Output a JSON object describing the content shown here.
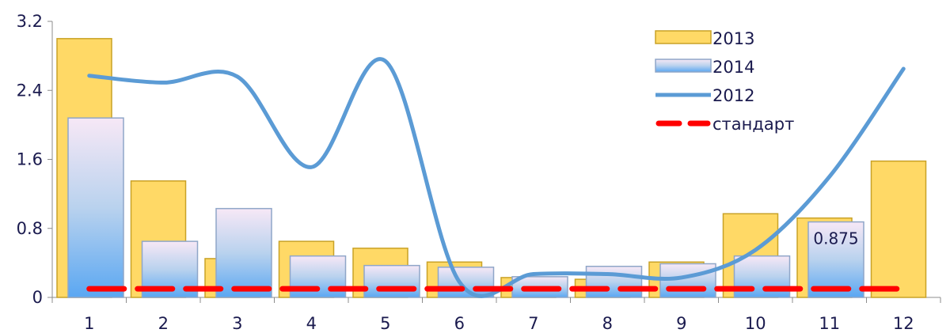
{
  "chart_data": {
    "type": "bar",
    "categories": [
      "1",
      "2",
      "3",
      "4",
      "5",
      "6",
      "7",
      "8",
      "9",
      "10",
      "11",
      "12"
    ],
    "ylim": [
      0,
      3.2
    ],
    "yticks": [
      "0",
      "0.8",
      "1.6",
      "2.4",
      "3.2"
    ],
    "ytick_values": [
      0,
      0.8,
      1.6,
      2.4,
      3.2
    ],
    "grid": false,
    "legend_position": "top-right",
    "series": [
      {
        "name": "2013",
        "kind": "bar",
        "color": "#FFD966",
        "values": [
          3.0,
          1.35,
          0.45,
          0.65,
          0.57,
          0.41,
          0.23,
          0.21,
          0.41,
          0.97,
          0.92,
          1.58
        ]
      },
      {
        "name": "2014",
        "kind": "bar",
        "color": "#9DC3E6",
        "values": [
          2.08,
          0.65,
          1.03,
          0.48,
          0.37,
          0.35,
          0.24,
          0.36,
          0.39,
          0.48,
          0.875,
          null
        ]
      },
      {
        "name": "2012",
        "kind": "line",
        "style": "smooth",
        "color": "#5B9BD5",
        "values": [
          2.57,
          2.49,
          2.56,
          1.51,
          2.74,
          0.18,
          0.27,
          0.27,
          0.23,
          0.55,
          1.4,
          2.65
        ]
      },
      {
        "name": "стандарт",
        "kind": "line",
        "style": "dashed",
        "color": "#FF0000",
        "values": [
          0.1,
          0.1,
          0.1,
          0.1,
          0.1,
          0.1,
          0.1,
          0.1,
          0.1,
          0.1,
          0.1,
          0.1
        ]
      }
    ],
    "annotations": [
      {
        "category": "11",
        "series": "2014",
        "text": "0.875"
      }
    ]
  }
}
